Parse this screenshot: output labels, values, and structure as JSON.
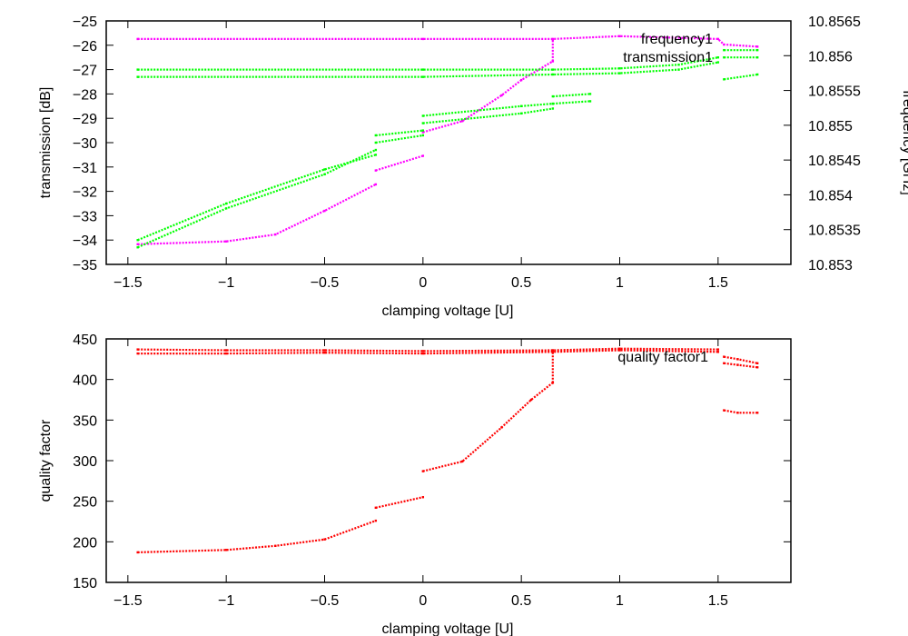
{
  "chart_data": [
    {
      "type": "scatter",
      "xlabel": "clamping voltage [U]",
      "ylabel": "transmission [dB]",
      "y2label": "frequency [GHz]",
      "xlim": [
        -1.61,
        1.87
      ],
      "ylim": [
        -35,
        -25
      ],
      "y2lim": [
        10.853,
        10.8565
      ],
      "grid": false,
      "legend_placement": "top-right",
      "x_ticks": [
        "-1.5",
        "-1",
        "-0.5",
        "0",
        "0.5",
        "1",
        "1.5"
      ],
      "x_tick_values": [
        -1.5,
        -1,
        -0.5,
        0,
        0.5,
        1,
        1.5
      ],
      "y_ticks": [
        "-35",
        "-34",
        "-33",
        "-32",
        "-31",
        "-30",
        "-29",
        "-28",
        "-27",
        "-26",
        "-25"
      ],
      "y_tick_values": [
        -35,
        -34,
        -33,
        -32,
        -31,
        -30,
        -29,
        -28,
        -27,
        -26,
        -25
      ],
      "y2_ticks": [
        "10.853",
        "10.8535",
        "10.854",
        "10.8545",
        "10.855",
        "10.8555",
        "10.856",
        "10.8565"
      ],
      "y2_tick_values": [
        10.853,
        10.8535,
        10.854,
        10.8545,
        10.855,
        10.8555,
        10.856,
        10.8565
      ],
      "series": [
        {
          "name": "frequency1",
          "axis": "y2",
          "color": "#ff00ff",
          "segments": [
            [
              [
                -1.45,
                10.85624
              ],
              [
                0.0,
                10.85624
              ],
              [
                0.66,
                10.85624
              ],
              [
                1.0,
                10.85628
              ],
              [
                1.5,
                10.85624
              ],
              [
                1.53,
                10.85616
              ],
              [
                1.7,
                10.85613
              ]
            ],
            [
              [
                -1.45,
                10.85329
              ],
              [
                -1.0,
                10.85333
              ],
              [
                -0.75,
                10.85343
              ],
              [
                -0.5,
                10.85377
              ],
              [
                -0.24,
                10.85415
              ]
            ],
            [
              [
                -0.24,
                10.85435
              ],
              [
                0.0,
                10.85456
              ]
            ],
            [
              [
                0.0,
                10.8549
              ],
              [
                0.2,
                10.85506
              ],
              [
                0.4,
                10.85543
              ],
              [
                0.5,
                10.85565
              ],
              [
                0.66,
                10.85592
              ]
            ],
            [
              [
                0.66,
                10.85592
              ],
              [
                0.66,
                10.85623
              ]
            ]
          ]
        },
        {
          "name": "transmission1",
          "axis": "y",
          "color": "#00ff00",
          "segments": [
            [
              [
                -1.45,
                -27.0
              ],
              [
                0.0,
                -27.0
              ],
              [
                0.66,
                -27.0
              ],
              [
                1.0,
                -26.95
              ],
              [
                1.3,
                -26.8
              ],
              [
                1.5,
                -26.5
              ]
            ],
            [
              [
                -1.45,
                -27.3
              ],
              [
                0.0,
                -27.3
              ],
              [
                0.66,
                -27.2
              ],
              [
                1.0,
                -27.15
              ],
              [
                1.3,
                -27.0
              ],
              [
                1.5,
                -26.7
              ]
            ],
            [
              [
                1.53,
                -26.2
              ],
              [
                1.7,
                -26.2
              ]
            ],
            [
              [
                1.53,
                -26.5
              ],
              [
                1.7,
                -26.5
              ]
            ],
            [
              [
                1.53,
                -27.4
              ],
              [
                1.7,
                -27.2
              ]
            ],
            [
              [
                -1.45,
                -34.3
              ],
              [
                -1.0,
                -32.7
              ],
              [
                -0.5,
                -31.3
              ],
              [
                -0.24,
                -30.3
              ]
            ],
            [
              [
                -1.45,
                -34.0
              ],
              [
                -1.0,
                -32.5
              ],
              [
                -0.5,
                -31.1
              ],
              [
                -0.24,
                -30.5
              ]
            ],
            [
              [
                -0.24,
                -29.7
              ],
              [
                0.0,
                -29.5
              ]
            ],
            [
              [
                -0.24,
                -30.0
              ],
              [
                0.0,
                -29.7
              ]
            ],
            [
              [
                0.0,
                -28.9
              ],
              [
                0.5,
                -28.5
              ],
              [
                0.66,
                -28.4
              ]
            ],
            [
              [
                0.0,
                -29.2
              ],
              [
                0.5,
                -28.8
              ],
              [
                0.66,
                -28.6
              ]
            ],
            [
              [
                0.66,
                -28.1
              ],
              [
                0.85,
                -28.0
              ]
            ],
            [
              [
                0.66,
                -28.4
              ],
              [
                0.85,
                -28.3
              ]
            ]
          ]
        }
      ]
    },
    {
      "type": "scatter",
      "xlabel": "clamping voltage [U]",
      "ylabel": "quality factor",
      "xlim": [
        -1.61,
        1.87
      ],
      "ylim": [
        150,
        450
      ],
      "grid": false,
      "legend_placement": "top-right",
      "x_ticks": [
        "-1.5",
        "-1",
        "-0.5",
        "0",
        "0.5",
        "1",
        "1.5"
      ],
      "x_tick_values": [
        -1.5,
        -1,
        -0.5,
        0,
        0.5,
        1,
        1.5
      ],
      "y_ticks": [
        "150",
        "200",
        "250",
        "300",
        "350",
        "400",
        "450"
      ],
      "y_tick_values": [
        150,
        200,
        250,
        300,
        350,
        400,
        450
      ],
      "series": [
        {
          "name": "quality factor1",
          "axis": "y",
          "color": "#ff0000",
          "segments": [
            [
              [
                -1.45,
                437
              ],
              [
                -1.0,
                436
              ],
              [
                -0.5,
                436
              ],
              [
                0.0,
                435
              ],
              [
                0.66,
                436
              ],
              [
                1.0,
                438
              ],
              [
                1.5,
                437
              ]
            ],
            [
              [
                -1.45,
                432
              ],
              [
                -1.0,
                432
              ],
              [
                -0.5,
                433
              ],
              [
                0.0,
                432
              ],
              [
                0.66,
                434
              ],
              [
                1.0,
                436
              ],
              [
                1.5,
                434
              ]
            ],
            [
              [
                1.53,
                428
              ],
              [
                1.6,
                425
              ],
              [
                1.7,
                420
              ]
            ],
            [
              [
                1.53,
                420
              ],
              [
                1.6,
                418
              ],
              [
                1.7,
                415
              ]
            ],
            [
              [
                1.53,
                362
              ],
              [
                1.6,
                359
              ],
              [
                1.7,
                359
              ]
            ],
            [
              [
                -1.45,
                187
              ],
              [
                -1.0,
                190
              ],
              [
                -0.75,
                195
              ],
              [
                -0.5,
                203
              ],
              [
                -0.24,
                226
              ]
            ],
            [
              [
                -0.24,
                242
              ],
              [
                0.0,
                255
              ]
            ],
            [
              [
                0.0,
                287
              ],
              [
                0.2,
                299
              ],
              [
                0.4,
                341
              ],
              [
                0.55,
                375
              ],
              [
                0.66,
                396
              ]
            ],
            [
              [
                0.66,
                396
              ],
              [
                0.66,
                435
              ]
            ]
          ]
        }
      ]
    }
  ]
}
